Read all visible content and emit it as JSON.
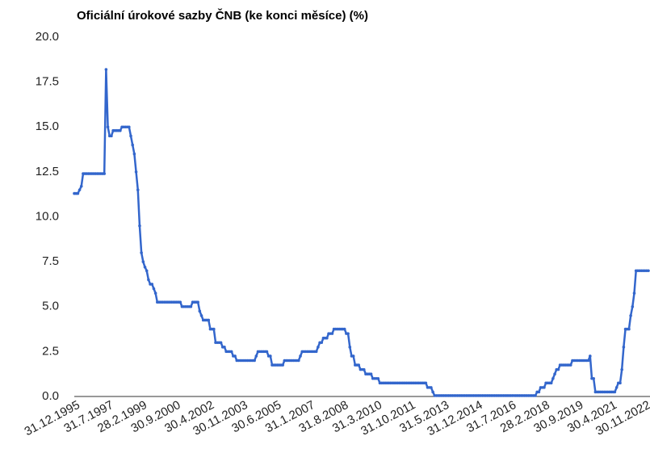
{
  "chart_data": {
    "type": "line",
    "title": "Oficiální úrokové sazby ČNB (ke konci měsíce) (%)",
    "categories": [
      "31.12.1995",
      null,
      null,
      null,
      null,
      null,
      null,
      null,
      null,
      null,
      null,
      null,
      null,
      null,
      null,
      null,
      null,
      null,
      null,
      "31.7.1997",
      null,
      null,
      null,
      null,
      null,
      null,
      null,
      null,
      null,
      null,
      null,
      null,
      null,
      null,
      null,
      null,
      null,
      null,
      "28.2.1999",
      null,
      null,
      null,
      null,
      null,
      null,
      null,
      null,
      null,
      null,
      null,
      null,
      null,
      null,
      null,
      null,
      null,
      null,
      "30.9.2000",
      null,
      null,
      null,
      null,
      null,
      null,
      null,
      null,
      null,
      null,
      null,
      null,
      null,
      null,
      null,
      null,
      null,
      null,
      "30.4.2002",
      null,
      null,
      null,
      null,
      null,
      null,
      null,
      null,
      null,
      null,
      null,
      null,
      null,
      null,
      null,
      null,
      null,
      null,
      "30.11.2003",
      null,
      null,
      null,
      null,
      null,
      null,
      null,
      null,
      null,
      null,
      null,
      null,
      null,
      null,
      null,
      null,
      null,
      null,
      "30.6.2005",
      null,
      null,
      null,
      null,
      null,
      null,
      null,
      null,
      null,
      null,
      null,
      null,
      null,
      null,
      null,
      null,
      null,
      null,
      "31.1.2007",
      null,
      null,
      null,
      null,
      null,
      null,
      null,
      null,
      null,
      null,
      null,
      null,
      null,
      null,
      null,
      null,
      null,
      null,
      "31.8.2008",
      null,
      null,
      null,
      null,
      null,
      null,
      null,
      null,
      null,
      null,
      null,
      null,
      null,
      null,
      null,
      null,
      null,
      null,
      "31.3.2010",
      null,
      null,
      null,
      null,
      null,
      null,
      null,
      null,
      null,
      null,
      null,
      null,
      null,
      null,
      null,
      null,
      null,
      null,
      "31.10.2011",
      null,
      null,
      null,
      null,
      null,
      null,
      null,
      null,
      null,
      null,
      null,
      null,
      null,
      null,
      null,
      null,
      null,
      null,
      "31.5.2013",
      null,
      null,
      null,
      null,
      null,
      null,
      null,
      null,
      null,
      null,
      null,
      null,
      null,
      null,
      null,
      null,
      null,
      null,
      "31.12.2014",
      null,
      null,
      null,
      null,
      null,
      null,
      null,
      null,
      null,
      null,
      null,
      null,
      null,
      null,
      null,
      null,
      null,
      null,
      "31.7.2016",
      null,
      null,
      null,
      null,
      null,
      null,
      null,
      null,
      null,
      null,
      null,
      null,
      null,
      null,
      null,
      null,
      null,
      null,
      "28.2.2018",
      null,
      null,
      null,
      null,
      null,
      null,
      null,
      null,
      null,
      null,
      null,
      null,
      null,
      null,
      null,
      null,
      null,
      null,
      "30.9.2019",
      null,
      null,
      null,
      null,
      null,
      null,
      null,
      null,
      null,
      null,
      null,
      null,
      null,
      null,
      null,
      null,
      null,
      null,
      "30.4.2021",
      null,
      null,
      null,
      null,
      null,
      null,
      null,
      null,
      null,
      null,
      null,
      null,
      null,
      null,
      null,
      null,
      null,
      null,
      "30.11.2022",
      null,
      null
    ],
    "series": [
      {
        "color": "#3366cc",
        "values": [
          11.3,
          11.3,
          11.3,
          11.5,
          11.7,
          12.4,
          12.4,
          12.4,
          12.4,
          12.4,
          12.4,
          12.4,
          12.4,
          12.4,
          12.4,
          12.4,
          12.4,
          12.4,
          18.2,
          15.0,
          14.5,
          14.5,
          14.8,
          14.8,
          14.8,
          14.8,
          14.8,
          15.0,
          15.0,
          15.0,
          15.0,
          15.0,
          14.5,
          14.0,
          13.5,
          12.5,
          11.5,
          9.5,
          8.0,
          7.5,
          7.2,
          7.0,
          6.5,
          6.25,
          6.25,
          6.0,
          5.75,
          5.25,
          5.25,
          5.25,
          5.25,
          5.25,
          5.25,
          5.25,
          5.25,
          5.25,
          5.25,
          5.25,
          5.25,
          5.25,
          5.25,
          5.0,
          5.0,
          5.0,
          5.0,
          5.0,
          5.0,
          5.25,
          5.25,
          5.25,
          5.25,
          4.75,
          4.5,
          4.25,
          4.25,
          4.25,
          4.25,
          3.75,
          3.75,
          3.75,
          3.0,
          3.0,
          3.0,
          3.0,
          2.75,
          2.75,
          2.5,
          2.5,
          2.5,
          2.5,
          2.25,
          2.25,
          2.0,
          2.0,
          2.0,
          2.0,
          2.0,
          2.0,
          2.0,
          2.0,
          2.0,
          2.0,
          2.0,
          2.25,
          2.5,
          2.5,
          2.5,
          2.5,
          2.5,
          2.5,
          2.25,
          2.25,
          1.75,
          1.75,
          1.75,
          1.75,
          1.75,
          1.75,
          1.75,
          2.0,
          2.0,
          2.0,
          2.0,
          2.0,
          2.0,
          2.0,
          2.0,
          2.0,
          2.25,
          2.5,
          2.5,
          2.5,
          2.5,
          2.5,
          2.5,
          2.5,
          2.5,
          2.5,
          2.75,
          3.0,
          3.0,
          3.25,
          3.25,
          3.25,
          3.5,
          3.5,
          3.5,
          3.75,
          3.75,
          3.75,
          3.75,
          3.75,
          3.75,
          3.75,
          3.5,
          3.5,
          2.75,
          2.25,
          2.25,
          1.75,
          1.75,
          1.75,
          1.5,
          1.5,
          1.5,
          1.25,
          1.25,
          1.25,
          1.25,
          1.0,
          1.0,
          1.0,
          1.0,
          0.75,
          0.75,
          0.75,
          0.75,
          0.75,
          0.75,
          0.75,
          0.75,
          0.75,
          0.75,
          0.75,
          0.75,
          0.75,
          0.75,
          0.75,
          0.75,
          0.75,
          0.75,
          0.75,
          0.75,
          0.75,
          0.75,
          0.75,
          0.75,
          0.75,
          0.75,
          0.75,
          0.5,
          0.5,
          0.5,
          0.25,
          0.05,
          0.05,
          0.05,
          0.05,
          0.05,
          0.05,
          0.05,
          0.05,
          0.05,
          0.05,
          0.05,
          0.05,
          0.05,
          0.05,
          0.05,
          0.05,
          0.05,
          0.05,
          0.05,
          0.05,
          0.05,
          0.05,
          0.05,
          0.05,
          0.05,
          0.05,
          0.05,
          0.05,
          0.05,
          0.05,
          0.05,
          0.05,
          0.05,
          0.05,
          0.05,
          0.05,
          0.05,
          0.05,
          0.05,
          0.05,
          0.05,
          0.05,
          0.05,
          0.05,
          0.05,
          0.05,
          0.05,
          0.05,
          0.05,
          0.05,
          0.05,
          0.05,
          0.05,
          0.05,
          0.05,
          0.05,
          0.05,
          0.05,
          0.25,
          0.25,
          0.5,
          0.5,
          0.5,
          0.75,
          0.75,
          0.75,
          0.75,
          1.0,
          1.25,
          1.5,
          1.5,
          1.75,
          1.75,
          1.75,
          1.75,
          1.75,
          1.75,
          1.75,
          2.0,
          2.0,
          2.0,
          2.0,
          2.0,
          2.0,
          2.0,
          2.0,
          2.0,
          2.0,
          2.25,
          1.0,
          1.0,
          0.25,
          0.25,
          0.25,
          0.25,
          0.25,
          0.25,
          0.25,
          0.25,
          0.25,
          0.25,
          0.25,
          0.25,
          0.5,
          0.75,
          0.75,
          1.5,
          2.75,
          3.75,
          3.75,
          3.75,
          4.5,
          5.0,
          5.75,
          7.0,
          7.0,
          7.0,
          7.0,
          7.0,
          7.0,
          7.0,
          7.0
        ]
      }
    ],
    "ylim": [
      0,
      20
    ],
    "yticks": [
      {
        "value": 0,
        "label": "0.0"
      },
      2.5,
      {
        "value": 5,
        "label": "5.0"
      },
      7.5,
      {
        "value": 10,
        "label": "10.0"
      },
      12.5,
      {
        "value": 15,
        "label": "15.0"
      },
      17.5,
      {
        "value": 20,
        "label": "20.0"
      }
    ],
    "grid": false
  }
}
